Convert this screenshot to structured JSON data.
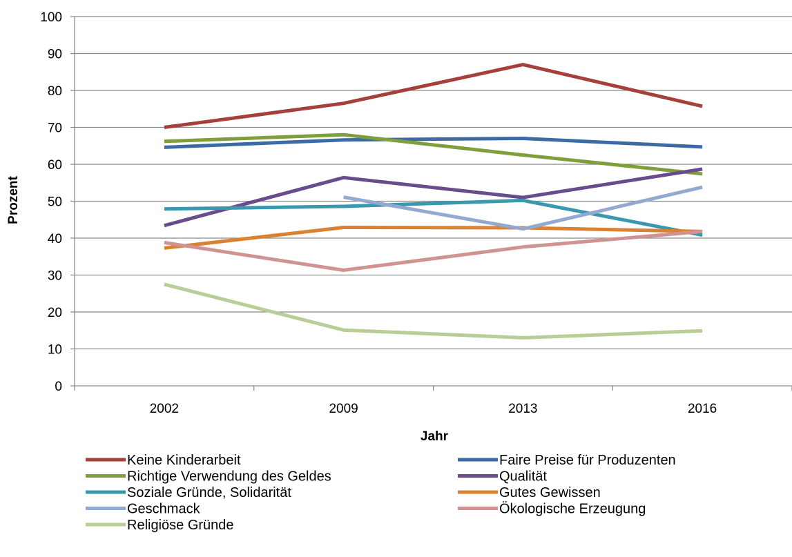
{
  "chart_data": {
    "type": "line",
    "title": "",
    "xlabel": "Jahr",
    "ylabel": "Prozent",
    "categories": [
      "2002",
      "2009",
      "2013",
      "2016"
    ],
    "ylim": [
      0,
      100
    ],
    "yticks": [
      0,
      10,
      20,
      30,
      40,
      50,
      60,
      70,
      80,
      90,
      100
    ],
    "grid": "horizontal",
    "legend_position": "bottom",
    "series": [
      {
        "name": "Keine Kinderarbeit",
        "color": "#A5403D",
        "values": [
          70,
          76.5,
          87,
          75.7
        ]
      },
      {
        "name": "Faire Preise für Produzenten",
        "color": "#3E6AA4",
        "values": [
          64.6,
          66.6,
          67,
          64.7
        ]
      },
      {
        "name": "Richtige Verwendung des Geldes",
        "color": "#7E9F3B",
        "values": [
          66.2,
          68,
          62.5,
          57.4
        ]
      },
      {
        "name": "Qualität",
        "color": "#6A4C8C",
        "values": [
          43.4,
          56.4,
          51,
          58.7
        ]
      },
      {
        "name": "Soziale Gründe, Solidarität",
        "color": "#3A98AE",
        "values": [
          47.9,
          48.6,
          50.2,
          40.8
        ]
      },
      {
        "name": "Gutes Gewissen",
        "color": "#DB8232",
        "values": [
          37.3,
          42.9,
          42.8,
          41.8
        ]
      },
      {
        "name": "Geschmack",
        "color": "#93A9CF",
        "values": [
          null,
          51.1,
          42.5,
          53.8
        ]
      },
      {
        "name": "Ökologische Erzeugung",
        "color": "#D19392",
        "values": [
          38.8,
          31.3,
          37.6,
          41.8
        ]
      },
      {
        "name": "Religiöse Gründe",
        "color": "#B9CD96",
        "values": [
          27.5,
          15.1,
          13,
          14.9
        ]
      }
    ]
  }
}
